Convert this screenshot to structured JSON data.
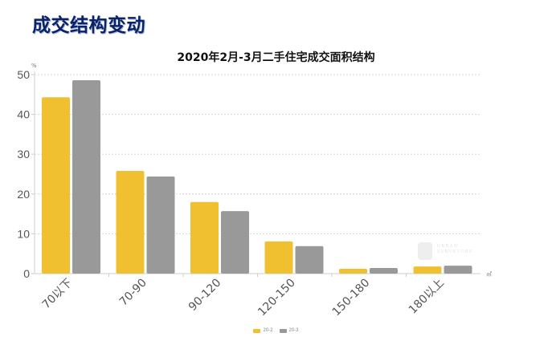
{
  "page": {
    "title": "成交结构变动"
  },
  "chart_data": {
    "type": "bar",
    "title": "2020年2月-3月二手住宅成交面积结构",
    "xlabel": "",
    "ylabel": "%",
    "x_unit": "㎡",
    "categories": [
      "70以下",
      "70-90",
      "90-120",
      "120-150",
      "150-180",
      "180以上"
    ],
    "series": [
      {
        "name": "20-2",
        "color": "#f0c030",
        "values": [
          44.3,
          25.8,
          18.0,
          8.1,
          1.2,
          1.8
        ]
      },
      {
        "name": "20-3",
        "color": "#999999",
        "values": [
          48.6,
          24.4,
          15.7,
          6.9,
          1.4,
          2.0
        ]
      }
    ],
    "ylim": [
      0,
      50
    ],
    "yticks": [
      0,
      10,
      20,
      30,
      40,
      50
    ],
    "grid": true,
    "legend_position": "bottom"
  },
  "legend": {
    "items": [
      {
        "label": "20-2",
        "color": "#f0c030"
      },
      {
        "label": "20-3",
        "color": "#999999"
      }
    ]
  },
  "watermark": {
    "line1": "URBAN",
    "line2": "SURVEYORS"
  }
}
